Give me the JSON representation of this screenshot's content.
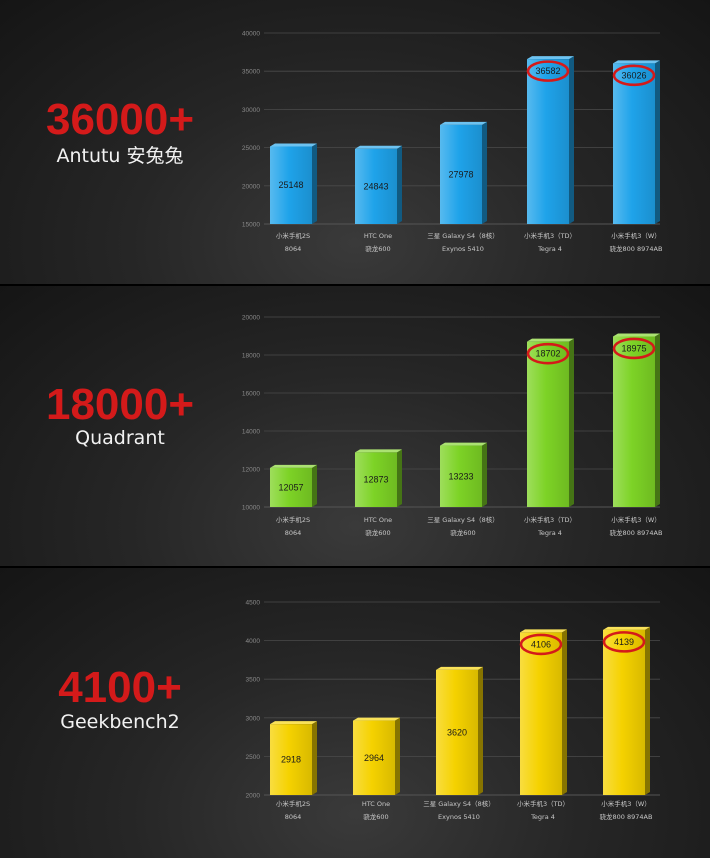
{
  "chart_data": [
    {
      "type": "bar",
      "headline": "36000+",
      "benchmark": "Antutu 安兔兔",
      "ylim": [
        15000,
        40000
      ],
      "yticks": [
        15000,
        20000,
        25000,
        30000,
        35000,
        40000
      ],
      "ytick_labels": [
        "15000",
        "20000",
        "25000",
        "30000",
        "35000",
        "40000"
      ],
      "grid": true,
      "categories": [
        "小米手机2S",
        "HTC One",
        "三星 Galaxy S4（8核）",
        "小米手机3（TD）",
        "小米手机3（W）"
      ],
      "subcategories": [
        "8064",
        "骁龙600",
        "Exynos 5410",
        "Tegra 4",
        "骁龙800 8974AB"
      ],
      "values": [
        25148,
        24843,
        27978,
        36582,
        36026
      ],
      "value_labels": [
        "25148",
        "24843",
        "27978",
        "36582",
        "36026"
      ],
      "highlighted": [
        false,
        false,
        false,
        true,
        true
      ],
      "bar_color": "#1fa3ea"
    },
    {
      "type": "bar",
      "headline": "18000+",
      "benchmark": "Quadrant",
      "ylim": [
        10000,
        20000
      ],
      "yticks": [
        10000,
        12000,
        14000,
        16000,
        18000,
        20000
      ],
      "ytick_labels": [
        "10000",
        "12000",
        "14000",
        "16000",
        "18000",
        "20000"
      ],
      "grid": true,
      "categories": [
        "小米手机2S",
        "HTC One",
        "三星 Galaxy S4（8核）",
        "小米手机3（TD）",
        "小米手机3（W）"
      ],
      "subcategories": [
        "8064",
        "骁龙600",
        "骁龙600",
        "Tegra 4",
        "骁龙800 8974AB"
      ],
      "values": [
        12057,
        12873,
        13233,
        18702,
        18975
      ],
      "value_labels": [
        "12057",
        "12873",
        "13233",
        "18702",
        "18975"
      ],
      "highlighted": [
        false,
        false,
        false,
        true,
        true
      ],
      "bar_color": "#7dd326"
    },
    {
      "type": "bar",
      "headline": "4100+",
      "benchmark": "Geekbench2",
      "ylim": [
        2000,
        4500
      ],
      "yticks": [
        2000,
        2500,
        3000,
        3500,
        4000,
        4500
      ],
      "ytick_labels": [
        "2000",
        "2500",
        "3000",
        "3500",
        "4000",
        "4500"
      ],
      "grid": true,
      "categories": [
        "小米手机2S",
        "HTC One",
        "三星 Galaxy S4（8核）",
        "小米手机3（TD）",
        "小米手机3（W）"
      ],
      "subcategories": [
        "8064",
        "骁龙600",
        "Exynos 5410",
        "Tegra 4",
        "骁龙800 8974AB"
      ],
      "values": [
        2918,
        2964,
        3620,
        4106,
        4139
      ],
      "value_labels": [
        "2918",
        "2964",
        "3620",
        "4106",
        "4139"
      ],
      "highlighted": [
        false,
        false,
        false,
        true,
        true
      ],
      "bar_color": "#f5d200"
    }
  ]
}
